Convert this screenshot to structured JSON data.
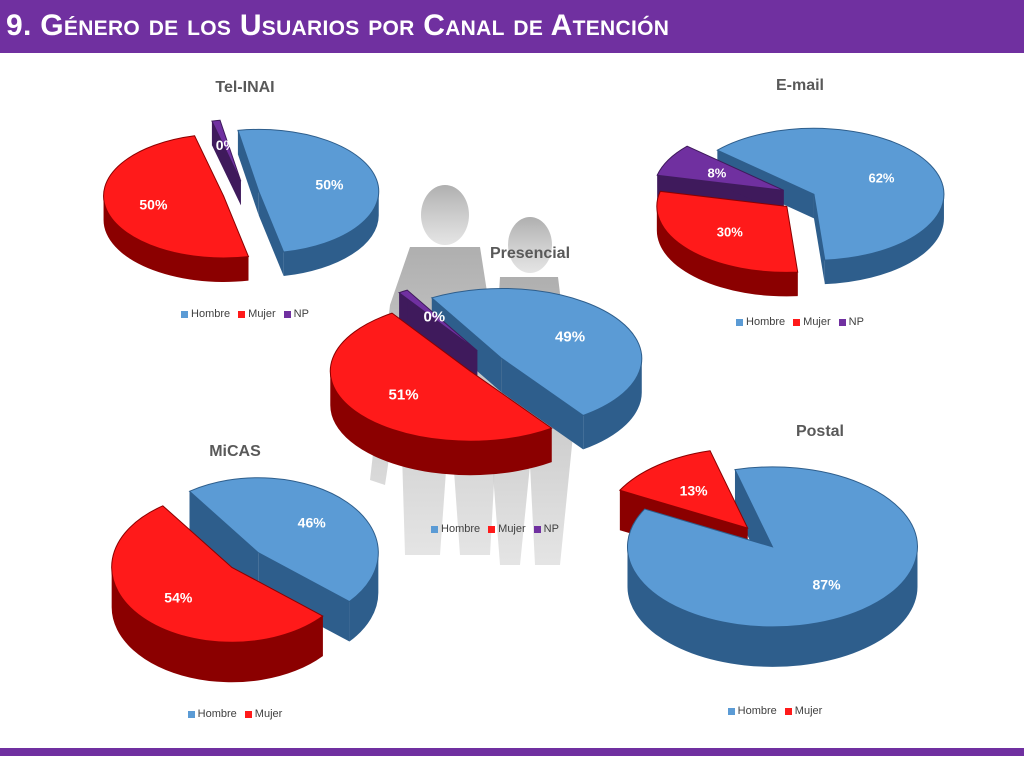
{
  "page": {
    "title": "9. Género de los Usuarios por Canal de Atención"
  },
  "colors": {
    "header": "#7030a0",
    "hombre_top": "#5b9bd5",
    "hombre_side": "#2e5e8c",
    "mujer_top": "#ff1a1a",
    "mujer_side": "#8b0000",
    "np_top": "#7030a0",
    "np_side": "#3f1a5c",
    "label": "#ffffff"
  },
  "legend_labels": {
    "hombre": "Hombre",
    "mujer": "Mujer",
    "np": "NP"
  },
  "chart_data": [
    {
      "type": "pie",
      "title": "Tel-INAI",
      "categories": [
        "Hombre",
        "Mujer",
        "NP"
      ],
      "values": [
        50,
        50,
        0
      ],
      "labels": [
        "50%",
        "50%",
        "0%"
      ],
      "legend": [
        "Hombre",
        "Mujer",
        "NP"
      ]
    },
    {
      "type": "pie",
      "title": "E-mail",
      "categories": [
        "Hombre",
        "Mujer",
        "NP"
      ],
      "values": [
        62,
        30,
        8
      ],
      "labels": [
        "62%",
        "30%",
        "8%"
      ],
      "legend": [
        "Hombre",
        "Mujer",
        "NP"
      ]
    },
    {
      "type": "pie",
      "title": "Presencial",
      "categories": [
        "Hombre",
        "Mujer",
        "NP"
      ],
      "values": [
        49,
        51,
        0
      ],
      "labels": [
        "49%",
        "51%",
        "0%"
      ],
      "legend": [
        "Hombre",
        "Mujer",
        "NP"
      ]
    },
    {
      "type": "pie",
      "title": "MiCAS",
      "categories": [
        "Hombre",
        "Mujer"
      ],
      "values": [
        46,
        54
      ],
      "labels": [
        "46%",
        "54%"
      ],
      "legend": [
        "Hombre",
        "Mujer"
      ]
    },
    {
      "type": "pie",
      "title": "Postal",
      "categories": [
        "Hombre",
        "Mujer"
      ],
      "values": [
        87,
        13
      ],
      "labels": [
        "87%",
        "13%"
      ],
      "legend": [
        "Hombre",
        "Mujer"
      ]
    }
  ]
}
